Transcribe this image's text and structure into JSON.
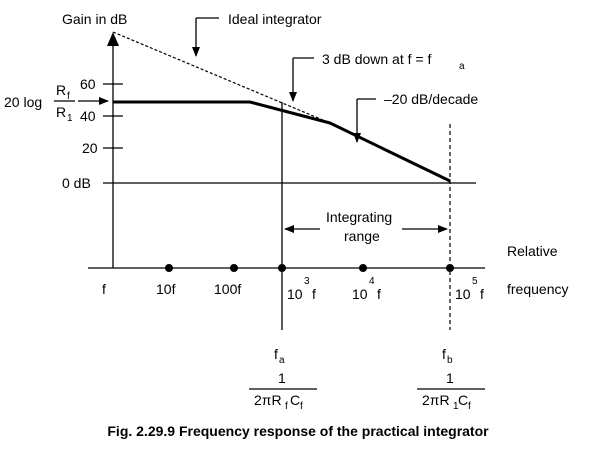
{
  "labels": {
    "y_axis_title": "Gain in dB",
    "ideal_integrator": "Ideal integrator",
    "db_down_prefix": "3 dB down at f = f",
    "db_down_sub": "a",
    "slope": "–20 dB/decade",
    "gain_prefix": "20 log",
    "gain_num": "R",
    "gain_num_sub": "f",
    "gain_den": "R",
    "gain_den_sub": "1",
    "integrating_range_line1": "Integrating",
    "integrating_range_line2": "range",
    "relative": "Relative",
    "frequency": "frequency"
  },
  "y_ticks": [
    "60",
    "40",
    "20",
    "0 dB"
  ],
  "x_ticks": {
    "f": "f",
    "ten_f": "10f",
    "hundred_f": "100f",
    "t3_base": "10",
    "t3_exp": "3",
    "t3_f": "f",
    "t4_base": "10",
    "t4_exp": "4",
    "t4_f": "f",
    "t5_base": "10",
    "t5_exp": "5",
    "t5_f": "f"
  },
  "fa": {
    "label": "f",
    "sub": "a",
    "numerator": "1",
    "denominator": "2πR",
    "den_sub1": "f",
    "den_mid": "C",
    "den_sub2": "f"
  },
  "fb": {
    "label": "f",
    "sub": "b",
    "numerator": "1",
    "denominator": "2πR",
    "den_sub1": "1",
    "den_mid": "C",
    "den_sub2": "f"
  },
  "caption": "Fig. 2.29.9 Frequency response of the practical integrator"
}
